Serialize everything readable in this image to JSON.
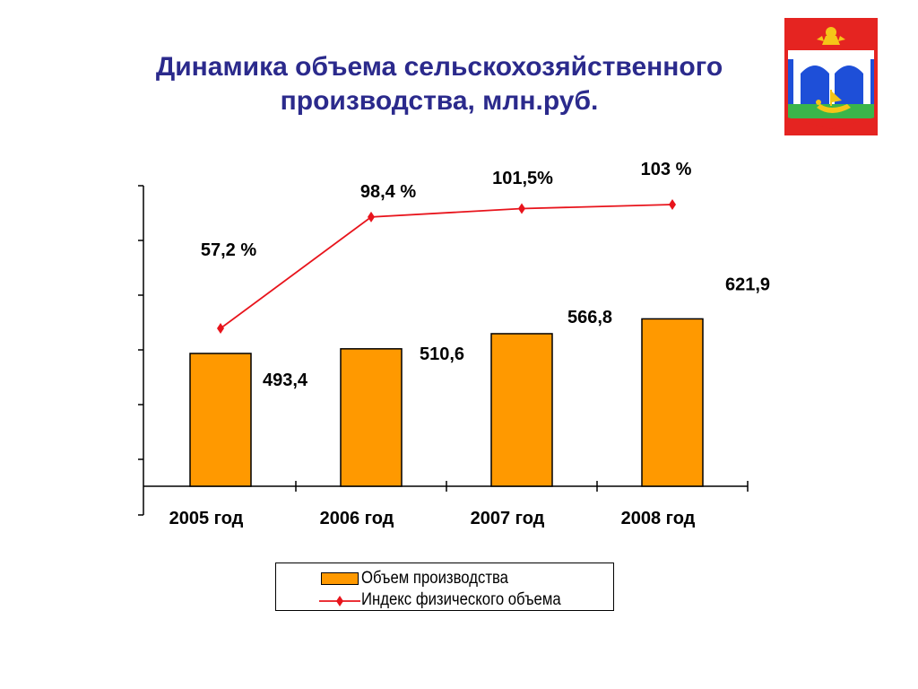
{
  "title": {
    "line1": "Динамика объема сельскохозяйственного",
    "line2": "производства, млн.руб."
  },
  "colors": {
    "title": "#2b2a8c",
    "bar": "#ff9900",
    "line": "#e8141c",
    "axis": "#000000"
  },
  "chart_data": {
    "type": "bar",
    "categories": [
      "2005 год",
      "2006 год",
      "2007 год",
      "2008 год"
    ],
    "ylim": [
      0,
      1800
    ],
    "grid": false,
    "legend_position": "bottom",
    "series": [
      {
        "name": "Объем производства",
        "type": "bar",
        "values": [
          493.4,
          510.6,
          566.8,
          621.9
        ],
        "labels": [
          "493,4",
          "510,6",
          "566,8",
          "621,9"
        ]
      },
      {
        "name": "Индекс физического объема",
        "type": "line",
        "values": [
          57.2,
          98.4,
          101.5,
          103
        ],
        "labels": [
          "57,2 %",
          "98,4 %",
          "101,5%",
          "103 %"
        ],
        "marker": "diamond"
      }
    ]
  }
}
